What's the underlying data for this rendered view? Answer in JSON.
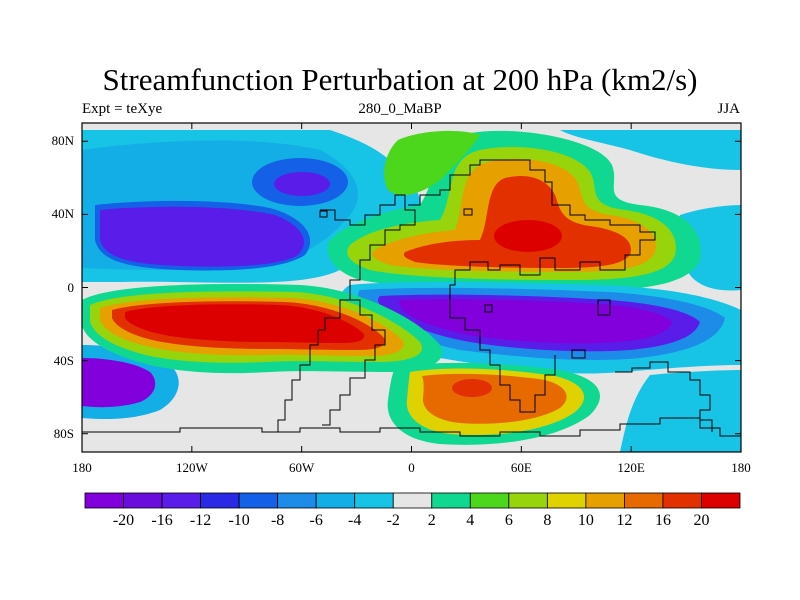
{
  "title": "Streamfunction Perturbation at 200 hPa (km2/s)",
  "left_string": "Expt = teXye",
  "center_string": "280_0_MaBP",
  "right_string": "JJA",
  "lat_labels": [
    "80N",
    "40N",
    "0",
    "40S",
    "80S"
  ],
  "lat_values": [
    80,
    40,
    0,
    -40,
    -80
  ],
  "lon_labels": [
    "180",
    "120W",
    "60W",
    "0",
    "60E",
    "120E",
    "180"
  ],
  "lon_values": [
    -180,
    -120,
    -60,
    0,
    60,
    120,
    180
  ],
  "colorbar": {
    "labels": [
      "-20",
      "-16",
      "-12",
      "-10",
      "-8",
      "-6",
      "-4",
      "-2",
      "2",
      "4",
      "6",
      "8",
      "10",
      "12",
      "16",
      "20"
    ],
    "colors": [
      "#8200dc",
      "#6a0cdc",
      "#5a1ce8",
      "#2a2ae6",
      "#1460e6",
      "#1c8ce8",
      "#14aee6",
      "#18c4e6",
      "#e6e6e6",
      "#10d890",
      "#4cd61c",
      "#98d40c",
      "#e0d200",
      "#e6a000",
      "#e66a00",
      "#e23000",
      "#dc0000"
    ]
  },
  "map_colors": {
    "strong_pos": "#dc0000",
    "pos_16": "#e23000",
    "pos_12": "#e66a00",
    "pos_10": "#e6a000",
    "pos_8": "#e0d200",
    "pos_6": "#98d40c",
    "pos_4": "#4cd61c",
    "pos_2": "#10d890",
    "neutral": "#e6e6e6",
    "neg_2": "#18c4e6",
    "neg_4": "#14aee6",
    "neg_6": "#1c8ce8",
    "neg_8": "#1460e6",
    "neg_10": "#2a2ae6",
    "neg_12": "#5a1ce8",
    "neg_16": "#6a0cdc",
    "strong_neg": "#8200dc"
  }
}
